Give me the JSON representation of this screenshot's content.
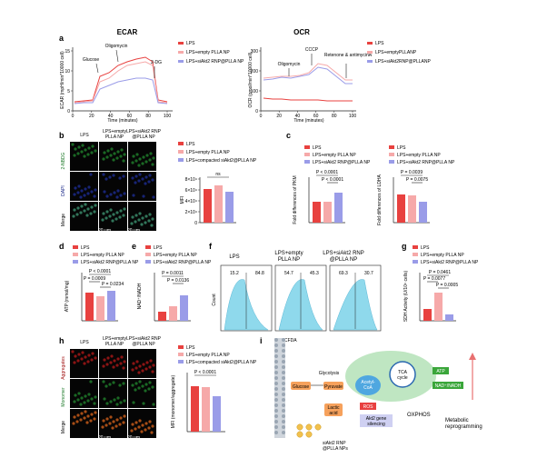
{
  "panel_a": {
    "label": "a",
    "ecar": {
      "title": "ECAR",
      "ylabel": "ECAR (mpH/min*10000 cell)",
      "xlabel": "Time (minutes)",
      "xticks": [
        "0",
        "20",
        "40",
        "60",
        "80",
        "100"
      ],
      "yticks": [
        "0",
        "5",
        "10",
        "15"
      ],
      "annotations": [
        "Glucose",
        "Oligomycin",
        "2-DG"
      ],
      "legend": [
        "LPS",
        "LPS+empty PLLA NP",
        "LPS+siAkt2 RNP@PLLA NP"
      ]
    },
    "ocr": {
      "title": "OCR",
      "ylabel": "OCR (pmol/min*10000 cell)",
      "xlabel": "Time (minutes)",
      "xticks": [
        "0",
        "20",
        "40",
        "60",
        "80",
        "100"
      ],
      "yticks": [
        "0",
        "100",
        "200",
        "300"
      ],
      "annotations": [
        "Oligomycin",
        "CCCP",
        "Retenone &\nantimycinA"
      ],
      "legend": [
        "LPS",
        "LPS+emptyPLLANP",
        "LPS+siAkt2RNP@PLLANP"
      ]
    }
  },
  "panel_b": {
    "label": "b",
    "col_headers": [
      "LPS",
      "LPS+empty\nPLLA NP",
      "LPS+siAkt2 RNP\n@PLLA NP"
    ],
    "row_labels": [
      "2-NBDG",
      "DAPI",
      "Merge"
    ],
    "scale": "20 μm",
    "legend": [
      "LPS",
      "LPS+empty PLLA NP",
      "LPS+compacted siAkt2@PLLA NP"
    ],
    "ylabel": "MFI",
    "yticks": [
      "0",
      "2×10⁴",
      "4×10⁴",
      "6×10⁴",
      "8×10⁴"
    ],
    "sig": "ns"
  },
  "panel_c": {
    "label": "c",
    "legend": [
      "LPS",
      "LPS+empty PLLA NP",
      "LPS+siAkt2 RNP@PLLA NP"
    ],
    "left": {
      "ylabel": "Fold differences of PKM",
      "p": [
        "P < 0.0001",
        "P < 0.0001"
      ],
      "yticks": [
        "0.0",
        "0.5",
        "1.0",
        "1.5",
        "2.0"
      ]
    },
    "right": {
      "ylabel": "Fold differences of LDHA",
      "p": [
        "P = 0.0039",
        "P = 0.0075"
      ],
      "yticks": [
        "0.0",
        "0.5",
        "1.0",
        "1.5"
      ]
    }
  },
  "panel_d": {
    "label": "d",
    "legend": [
      "LPS",
      "LPS+empty PLLA NP",
      "LPS+siAkt2 RNP@PLLA NP"
    ],
    "ylabel": "ATP (mmol/mg)",
    "p": [
      "P < 0.0001",
      "P = 0.0009",
      "P = 0.0234"
    ],
    "yticks": [
      "0",
      "2",
      "4",
      "6",
      "8"
    ]
  },
  "panel_e": {
    "label": "e",
    "legend": [
      "LPS",
      "LPS+empty PLLA NP",
      "LPS+siAkt2 RNP@PLLA NP"
    ],
    "ylabel": "NAD⁺/NADH",
    "p": [
      "P = 0.0011",
      "P = 0.0136"
    ],
    "yticks": [
      "0.0",
      "0.5",
      "1.0",
      "1.5",
      "2.0"
    ]
  },
  "panel_f": {
    "label": "f",
    "headers": [
      "LPS",
      "LPS+empty\nPLLA NP",
      "LPS+siAkt2 RNP\n@PLLA NP"
    ],
    "values": [
      [
        "15.2",
        "84.8"
      ],
      [
        "54.7",
        "45.3"
      ],
      [
        "69.3",
        "30.7"
      ]
    ],
    "ylabel": "Count",
    "xlabel": "DCFDA"
  },
  "panel_g": {
    "label": "g",
    "legend": [
      "LPS",
      "LPS+empty PLLA NP",
      "LPS+siAkt2 RNP@PLLA NP"
    ],
    "ylabel": "SDH Activity (U/10⁶ cells)",
    "p": [
      "P = 0.0461",
      "P = 0.0077",
      "P = 0.0005"
    ],
    "yticks": [
      "0",
      "1",
      "2",
      "3"
    ]
  },
  "panel_h": {
    "label": "h",
    "col_headers": [
      "LPS",
      "LPS+empty\nPLLA NP",
      "LPS+siAkt2 RNP\n@PLLA NP"
    ],
    "row_labels": [
      "Aggregates",
      "Monomer",
      "Merge"
    ],
    "scale": "20 μm",
    "legend": [
      "LPS",
      "LPS+empty PLLA NP",
      "LPS+compacted siAkt2@PLLA NP"
    ],
    "ylabel": "MFI (monomer/aggregate)",
    "p": "P < 0.0001",
    "yticks": [
      "0",
      "2",
      "4",
      "6",
      "8",
      "10"
    ]
  },
  "panel_i": {
    "label": "i",
    "nodes": {
      "glucose": "Glucose",
      "glycolysis": "Glycolysis",
      "pyruvate": "Pyruvate",
      "acetyl": "Acetyl-\nCoA",
      "tca": "TCA\ncycle",
      "atp": "ATP",
      "nad": "NAD⁺/NADH",
      "lactic": "Lactic\nacid",
      "ros": "ROS",
      "akt2": "Akt2 gene\nsilencing",
      "oxphos": "OXPHOS",
      "np": "siAkt2 RNP\n@PLLA NPs",
      "metabolic": "Metabolic\nreprogramming"
    }
  },
  "colors": {
    "lps": "#e8413f",
    "empty": "#f6a9a9",
    "siakt2": "#9a9ce8",
    "fluor_green": "#1f7a2a",
    "fluor_blue": "#1c2a8a",
    "fluor_red": "#a31818",
    "flow_cyan": "#8fd9ec"
  }
}
